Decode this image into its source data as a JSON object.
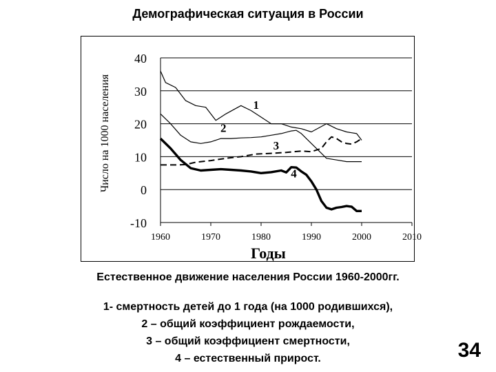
{
  "slide": {
    "title": "Демографическая ситуация в России",
    "caption": "Естественное движение населения России 1960-2000гг.",
    "legend_lines": [
      "1- смертность детей до 1 года (на 1000 родившихся),",
      "2 – общий коэффициент рождаемости,",
      "3 – общий коэффициент смертности,",
      "4 – естественный прирост."
    ],
    "page_number": "34"
  },
  "chart_data": {
    "type": "line",
    "xlabel": "Годы",
    "ylabel": "Число на 1000 населения",
    "xlim": [
      1960,
      2010
    ],
    "ylim": [
      -10,
      40
    ],
    "x_ticks": [
      "1960",
      "1970",
      "1980",
      "1990",
      "2000",
      "2010"
    ],
    "y_ticks": [
      "40",
      "30",
      "20",
      "10",
      "0",
      "-10"
    ],
    "grid": "horizontal",
    "series": [
      {
        "name": "1",
        "style": "thin",
        "x": [
          1960,
          1961,
          1963,
          1965,
          1967,
          1969,
          1971,
          1973,
          1976,
          1978,
          1980,
          1982,
          1984,
          1986,
          1988,
          1990,
          1993,
          1995,
          1997,
          1999,
          2000
        ],
        "y": [
          36,
          32.5,
          31,
          27,
          25.5,
          25,
          21,
          23,
          25.5,
          24,
          22,
          20,
          20,
          19,
          18.5,
          17.5,
          20,
          18.5,
          17.5,
          17,
          15
        ]
      },
      {
        "name": "2",
        "style": "thin",
        "x": [
          1960,
          1962,
          1964,
          1966,
          1968,
          1970,
          1972,
          1974,
          1976,
          1978,
          1980,
          1982,
          1984,
          1986,
          1987,
          1988,
          1990,
          1992,
          1993,
          1995,
          1997,
          1999,
          2000
        ],
        "y": [
          23,
          20,
          16.5,
          14.5,
          14,
          14.5,
          15.5,
          15.5,
          15.7,
          15.8,
          16,
          16.5,
          17,
          17.8,
          18,
          17,
          14,
          11,
          9.5,
          9,
          8.5,
          8.5,
          8.5
        ]
      },
      {
        "name": "3",
        "style": "dashed",
        "x": [
          1960,
          1963,
          1965,
          1967,
          1970,
          1973,
          1976,
          1979,
          1982,
          1985,
          1988,
          1990,
          1991,
          1992,
          1993,
          1994,
          1995,
          1996,
          1997,
          1998,
          1999,
          2000
        ],
        "y": [
          7.5,
          7.5,
          7.6,
          8.3,
          8.8,
          9.5,
          10,
          10.8,
          11,
          11.3,
          11.7,
          11.5,
          12,
          12.5,
          14.5,
          16,
          15.5,
          14.5,
          14,
          13.8,
          14.5,
          15.5
        ]
      },
      {
        "name": "4",
        "style": "bold",
        "x": [
          1960,
          1962,
          1964,
          1966,
          1968,
          1970,
          1972,
          1974,
          1976,
          1978,
          1980,
          1982,
          1984,
          1985,
          1986,
          1987,
          1988,
          1989,
          1990,
          1991,
          1992,
          1993,
          1994,
          1995,
          1996,
          1997,
          1998,
          1999,
          2000
        ],
        "y": [
          15.5,
          12.5,
          9,
          6.5,
          5.8,
          6,
          6.2,
          6,
          5.8,
          5.5,
          5,
          5.3,
          5.8,
          5.2,
          6.8,
          6.7,
          5.5,
          4.5,
          2.5,
          0,
          -3.5,
          -5.5,
          -6,
          -5.5,
          -5.3,
          -5,
          -5.2,
          -6.5,
          -6.5
        ]
      }
    ],
    "annotations": [
      {
        "text": "1",
        "x": 1979,
        "y": 24.5
      },
      {
        "text": "2",
        "x": 1972.5,
        "y": 17.5
      },
      {
        "text": "3",
        "x": 1983,
        "y": 12.2
      },
      {
        "text": "4",
        "x": 1986.5,
        "y": 3.7
      }
    ]
  }
}
